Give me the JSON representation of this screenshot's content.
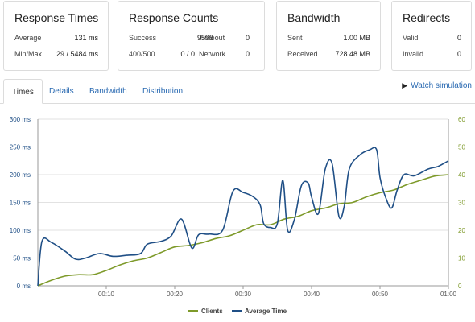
{
  "cards": {
    "response_times": {
      "title": "Response Times",
      "average_label": "Average",
      "average_value": "131 ms",
      "minmax_label": "Min/Max",
      "minmax_value": "29 / 5484 ms"
    },
    "response_counts": {
      "title": "Response Counts",
      "success_label": "Success",
      "success_value": "9598",
      "timeout_label": "Timeout",
      "timeout_value": "0",
      "status_label": "400/500",
      "status_value": "0 / 0",
      "network_label": "Network",
      "network_value": "0"
    },
    "bandwidth": {
      "title": "Bandwidth",
      "sent_label": "Sent",
      "sent_value": "1.00 MB",
      "received_label": "Received",
      "received_value": "728.48 MB"
    },
    "redirects": {
      "title": "Redirects",
      "valid_label": "Valid",
      "valid_value": "0",
      "invalid_label": "Invalid",
      "invalid_value": "0"
    }
  },
  "tabs": [
    {
      "label": "Times",
      "active": true
    },
    {
      "label": "Details",
      "active": false
    },
    {
      "label": "Bandwidth",
      "active": false
    },
    {
      "label": "Distribution",
      "active": false
    }
  ],
  "watch_simulation": "Watch simulation",
  "colors": {
    "clients": "#7e9a2a",
    "average_time": "#1f4f86",
    "link": "#2a6ab2",
    "grid": "#e2e2e2"
  },
  "chart_data": {
    "type": "line",
    "x_ticks": [
      "00:10",
      "00:20",
      "00:30",
      "00:40",
      "00:50",
      "01:00"
    ],
    "xlim_seconds": [
      0,
      60
    ],
    "y_left": {
      "ticks": [
        "0 ms",
        "50 ms",
        "100 ms",
        "150 ms",
        "200 ms",
        "250 ms",
        "300 ms"
      ],
      "lim": [
        0,
        300
      ]
    },
    "y_right": {
      "ticks": [
        "0",
        "10",
        "20",
        "30",
        "40",
        "50",
        "60"
      ],
      "lim": [
        0,
        60
      ]
    },
    "grid": true,
    "legend_position": "bottom",
    "series": [
      {
        "name": "Clients",
        "axis": "right",
        "x": [
          0,
          2,
          4,
          6,
          8,
          10,
          12,
          14,
          16,
          18,
          20,
          22,
          24,
          26,
          28,
          30,
          32,
          34,
          36,
          38,
          40,
          42,
          44,
          46,
          48,
          50,
          52,
          54,
          56,
          58,
          60
        ],
        "y": [
          0,
          2,
          3.5,
          4,
          4,
          5.5,
          7.5,
          9,
          10,
          12,
          14,
          14.5,
          15.5,
          17,
          18,
          20,
          22,
          22,
          24,
          25,
          27,
          28,
          29.5,
          30,
          32,
          33.5,
          34.5,
          36.5,
          38,
          39.5,
          40
        ]
      },
      {
        "name": "Average Time",
        "axis": "left",
        "x": [
          0,
          0.6,
          2,
          4,
          5.5,
          7,
          9,
          11,
          13,
          15,
          16,
          18,
          19.5,
          21,
          22.5,
          23.5,
          25,
          27,
          28.5,
          30,
          31.5,
          32.5,
          33,
          34,
          35,
          35.8,
          36.5,
          37.5,
          38.5,
          39.5,
          40,
          41,
          42,
          43,
          44,
          44.8,
          45.5,
          47,
          48.5,
          49.5,
          50,
          50.8,
          51.7,
          52.5,
          53.5,
          55,
          57,
          58.5,
          60
        ],
        "y": [
          0,
          80,
          78,
          62,
          48,
          50,
          58,
          53,
          55,
          58,
          75,
          80,
          90,
          120,
          68,
          92,
          93,
          100,
          170,
          168,
          160,
          145,
          112,
          105,
          112,
          190,
          100,
          120,
          180,
          185,
          160,
          130,
          210,
          220,
          125,
          145,
          210,
          235,
          245,
          245,
          195,
          160,
          140,
          172,
          200,
          198,
          210,
          215,
          225
        ]
      }
    ]
  }
}
